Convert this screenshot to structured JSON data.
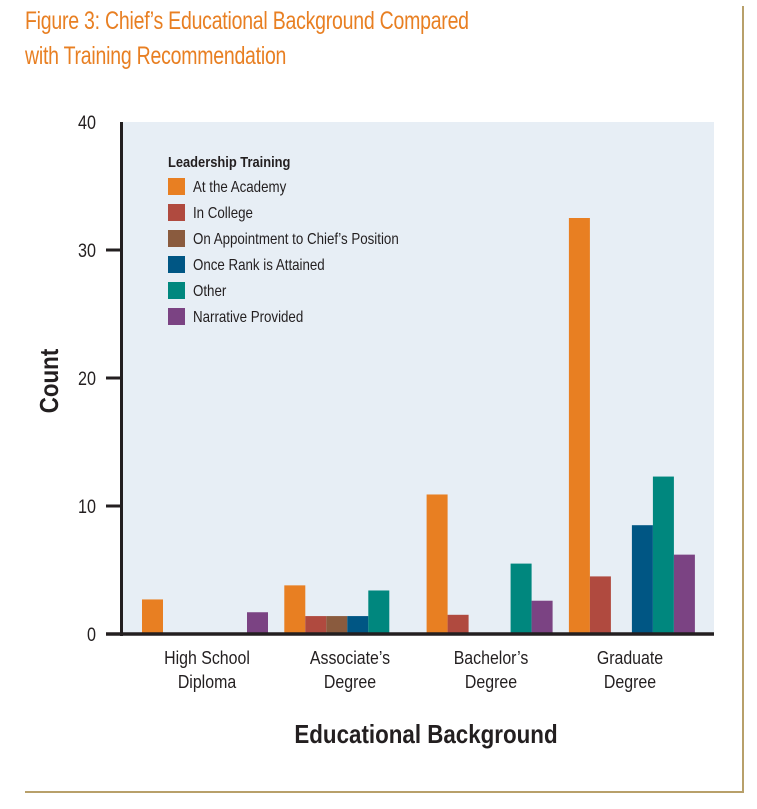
{
  "figure": {
    "title_line1": "Figure 3: Chief’s Educational Background Compared",
    "title_line2": "with Training Recommendation"
  },
  "colors": {
    "title": "#e87f22",
    "frame": "#b8a06a",
    "plot_bg": "#e7eef5",
    "axis": "#231f20"
  },
  "chart_data": {
    "type": "bar",
    "title": "Figure 3: Chief’s Educational Background Compared with Training Recommendation",
    "xlabel": "Educational Background",
    "ylabel": "Count",
    "ylim": [
      0,
      40
    ],
    "yticks": [
      "0",
      "10",
      "20",
      "30",
      "40"
    ],
    "grid": false,
    "legend_title": "Leadership Training",
    "legend_position": "top-left",
    "categories": [
      [
        "High School",
        "Diploma"
      ],
      [
        "Associate’s",
        "Degree"
      ],
      [
        "Bachelor’s",
        "Degree"
      ],
      [
        "Graduate",
        "Degree"
      ]
    ],
    "series": [
      {
        "name": "At the Academy",
        "color": "#e87f22",
        "values": [
          2.7,
          3.8,
          10.9,
          32.5
        ]
      },
      {
        "name": "In College",
        "color": "#b04a3f",
        "values": [
          0,
          1.4,
          1.5,
          4.5
        ]
      },
      {
        "name": "On Appointment to Chief’s Position",
        "color": "#8a5b3e",
        "values": [
          0,
          1.4,
          0,
          0
        ]
      },
      {
        "name": "Once Rank is Attained",
        "color": "#005684",
        "values": [
          0,
          1.4,
          0,
          8.5
        ]
      },
      {
        "name": "Other",
        "color": "#00877e",
        "values": [
          0,
          3.4,
          5.5,
          12.3
        ]
      },
      {
        "name": "Narrative Provided",
        "color": "#7b4383",
        "values": [
          1.7,
          0,
          2.6,
          6.2
        ]
      }
    ]
  }
}
